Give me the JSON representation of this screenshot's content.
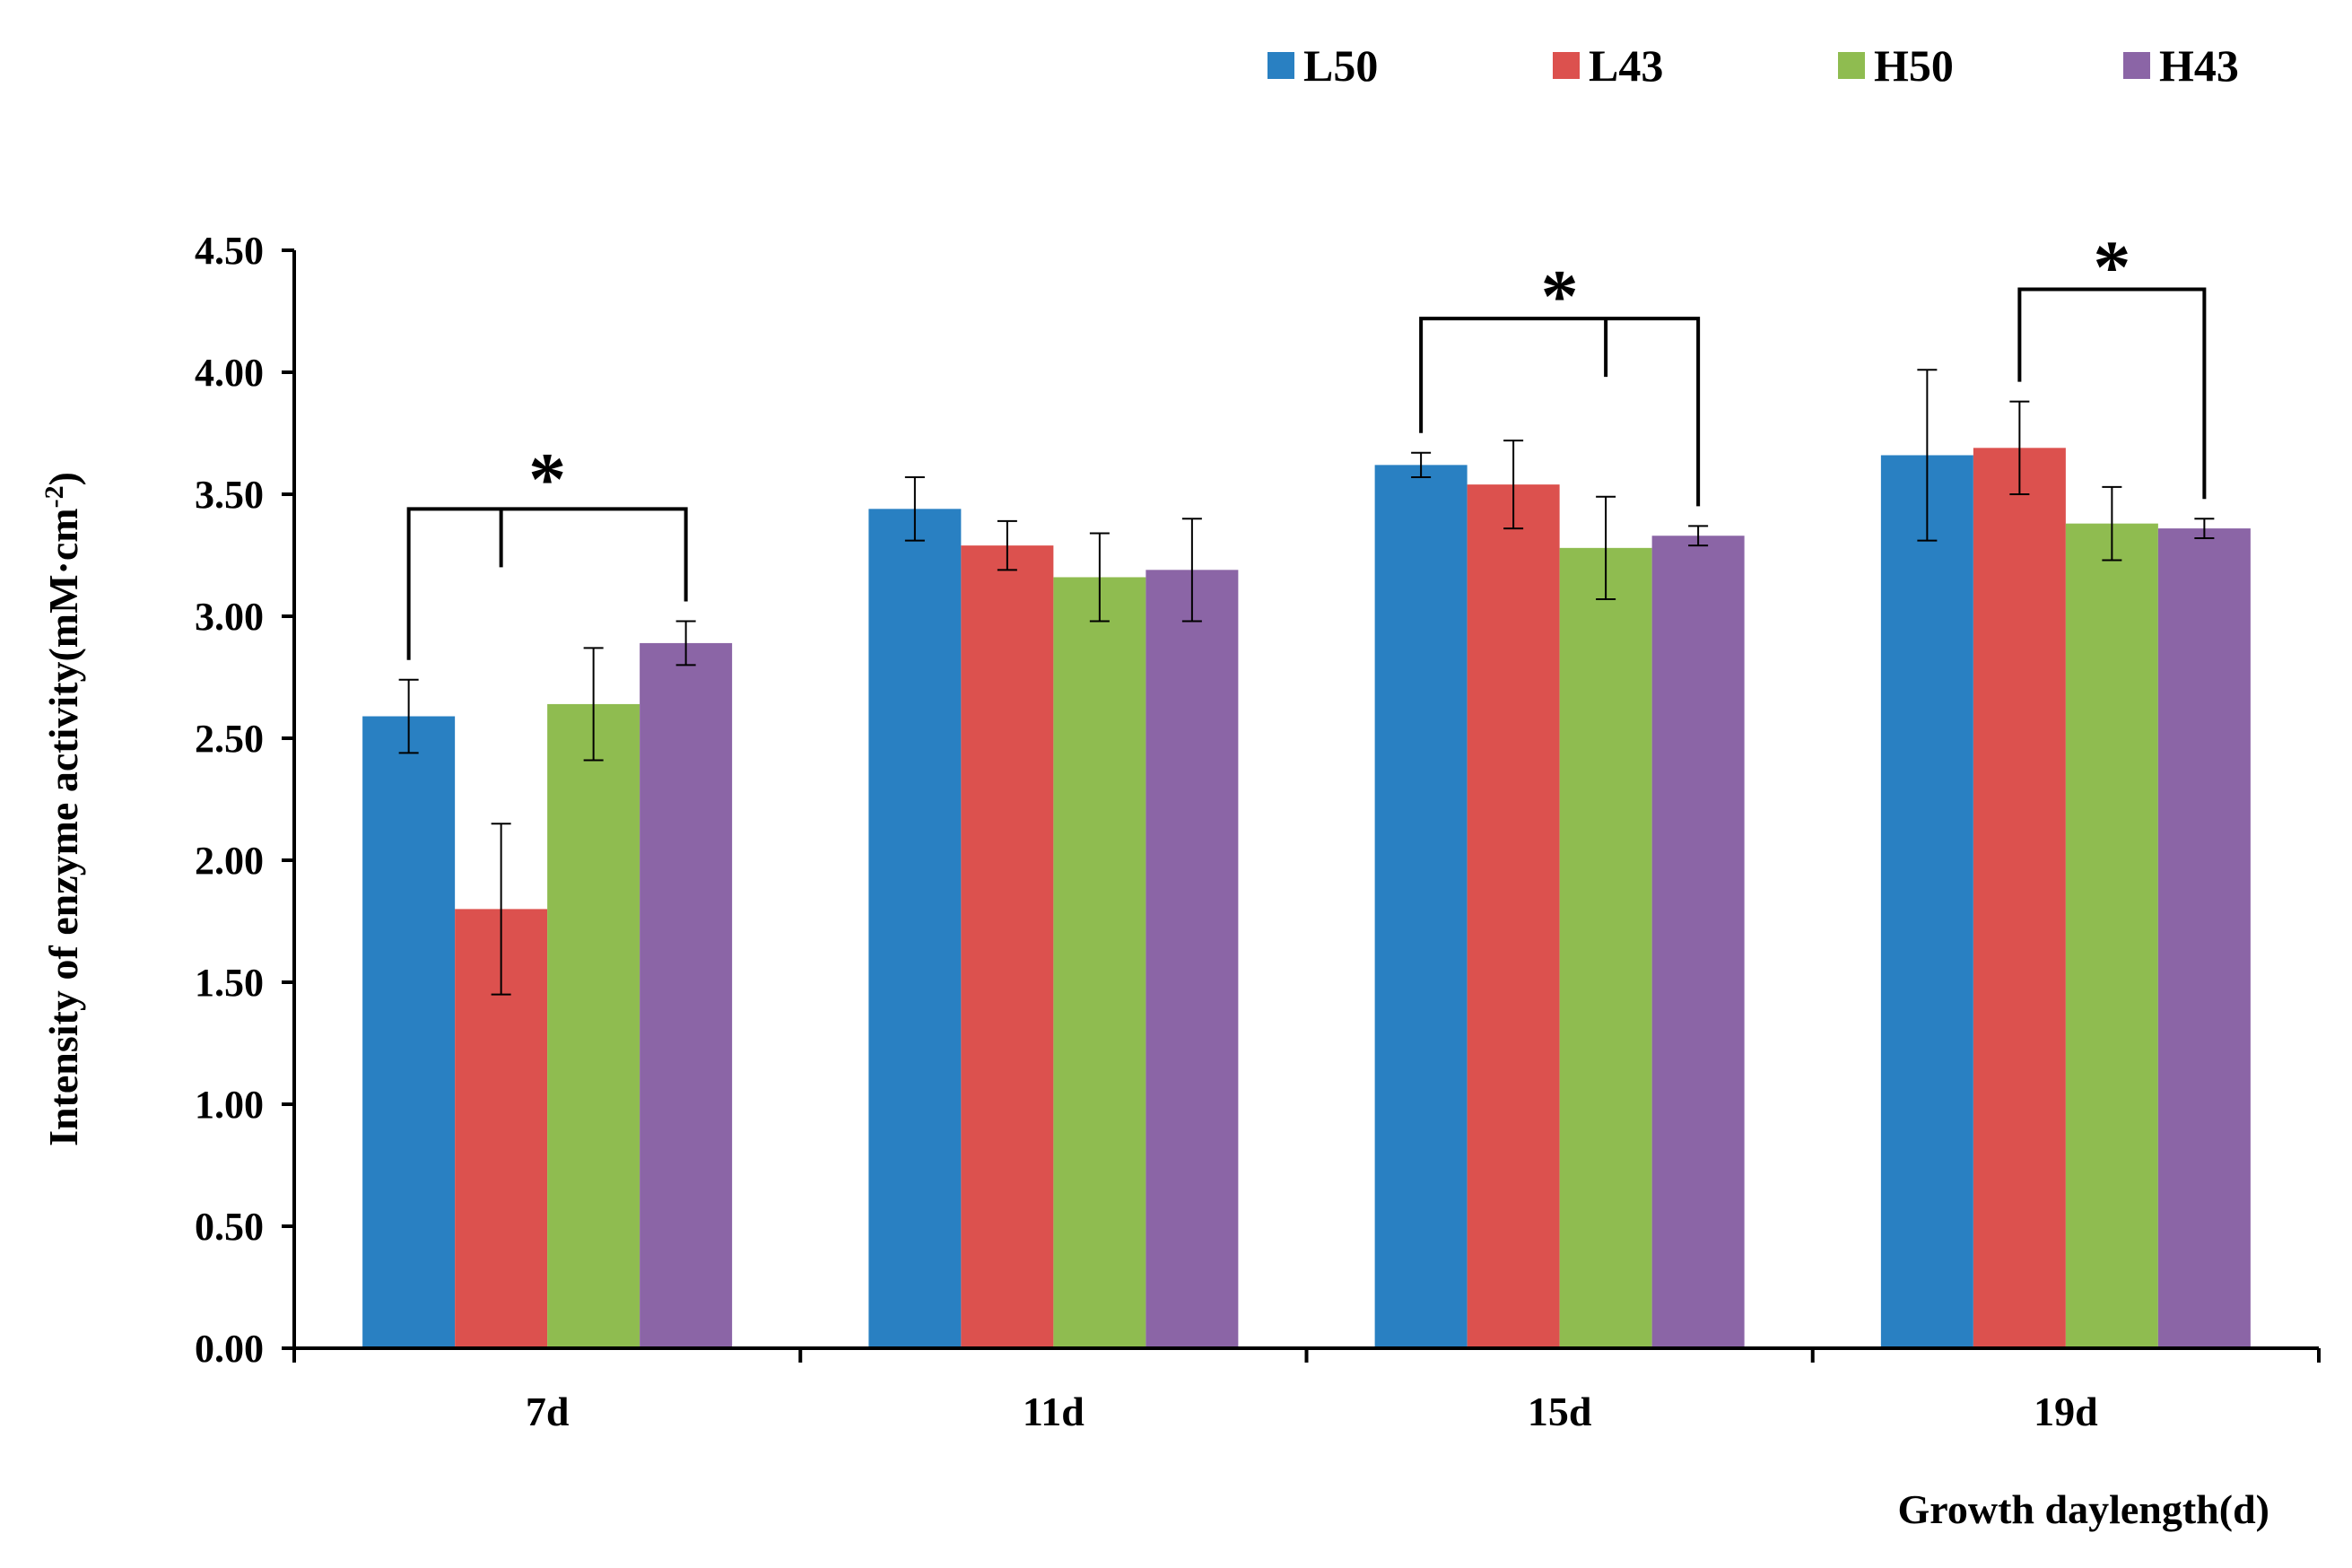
{
  "chart_data": {
    "type": "bar",
    "title": "",
    "xlabel": "Growth daylength(d)",
    "ylabel": "Intensity of enzyme activity(mM·cm",
    "ylabel_superscript": "-2",
    "ylabel_close": ")",
    "ylim": [
      0,
      4.5
    ],
    "yticks": [
      "0.00",
      "0.50",
      "1.00",
      "1.50",
      "2.00",
      "2.50",
      "3.00",
      "3.50",
      "4.00",
      "4.50"
    ],
    "categories": [
      "7d",
      "11d",
      "15d",
      "19d"
    ],
    "legend_position": "top-right",
    "series": [
      {
        "name": "L50",
        "color": "#2980c2",
        "values": [
          2.59,
          3.44,
          3.62,
          3.66
        ],
        "errors": [
          0.15,
          0.13,
          0.05,
          0.35
        ]
      },
      {
        "name": "L43",
        "color": "#dc514e",
        "values": [
          1.8,
          3.29,
          3.54,
          3.69
        ],
        "errors": [
          0.35,
          0.1,
          0.18,
          0.19
        ]
      },
      {
        "name": "H50",
        "color": "#8fbc50",
        "values": [
          2.64,
          3.16,
          3.28,
          3.38
        ],
        "errors": [
          0.23,
          0.18,
          0.21,
          0.15
        ]
      },
      {
        "name": "H43",
        "color": "#8b65a6",
        "values": [
          2.89,
          3.19,
          3.33,
          3.36
        ],
        "errors": [
          0.09,
          0.21,
          0.04,
          0.04
        ]
      }
    ],
    "annotations": [
      {
        "category": 0,
        "text": "*",
        "left_series": 0,
        "right_series": 3,
        "mid_series": 1,
        "level": 3.44,
        "stars_level": 3.65
      },
      {
        "category": 2,
        "text": "*",
        "left_series": 0,
        "right_series": 3,
        "mid_series": 2,
        "level": 4.22,
        "stars_level": 4.4
      },
      {
        "category": 3,
        "text": "*",
        "left_series": 1,
        "right_series": 3,
        "mid_series": null,
        "level": 4.34,
        "stars_level": 4.52
      }
    ]
  }
}
